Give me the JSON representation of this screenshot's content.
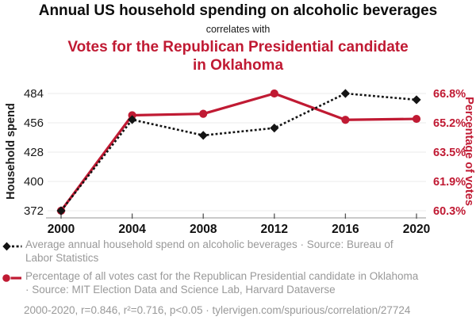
{
  "header": {
    "title": "Annual US household spending on alcoholic beverages",
    "connector": "correlates with",
    "subtitle": "Votes for the Republican Presidential candidate in Oklahoma"
  },
  "colors": {
    "accent_red": "#c01a33",
    "legend_gray": "#999999",
    "gridline": "#ebebeb",
    "axis_line": "#aaaaaa",
    "tick_mark": "#555555",
    "black_series": "#141414"
  },
  "chart_data": {
    "type": "line",
    "x": [
      2000,
      2004,
      2008,
      2012,
      2016,
      2020
    ],
    "x_tick_labels": [
      "2000",
      "2004",
      "2008",
      "2012",
      "2016",
      "2020"
    ],
    "series": [
      {
        "id": "household-spend",
        "name": "Average annual household spend on alcoholic beverages",
        "source": "Bureau of Labor Statistics",
        "axis": "left",
        "color": "#141414",
        "line_style": "dotted",
        "marker": "diamond",
        "values": [
          372,
          459,
          444,
          451,
          484,
          478
        ]
      },
      {
        "id": "republican-votes",
        "name": "Percentage of all votes cast for the Republican Presidential candidate in Oklahoma",
        "source": "MIT Election Data and Science Lab, Harvard Dataverse",
        "axis": "right",
        "color": "#c01a33",
        "line_style": "solid",
        "marker": "circle",
        "values": [
          60.31,
          65.57,
          65.65,
          66.77,
          65.32,
          65.37
        ]
      }
    ],
    "left_axis": {
      "label": "Household spend",
      "ticks": [
        "372",
        "400",
        "428",
        "456",
        "484"
      ],
      "range": [
        372,
        484
      ]
    },
    "right_axis": {
      "label": "Percentage of votes",
      "ticks": [
        "60.3%",
        "61.9%",
        "63.5%",
        "65.2%",
        "66.8%"
      ],
      "range": [
        60.31,
        66.77
      ]
    },
    "grid": true,
    "legend_position": "bottom"
  },
  "legend": {
    "items": [
      {
        "label": "Average annual household spend on alcoholic beverages · Source: Bureau of Labor Statistics"
      },
      {
        "label": "Percentage of all votes cast for the Republican Presidential candidate in Oklahoma · Source: MIT Election Data and Science Lab, Harvard Dataverse"
      }
    ]
  },
  "footer": {
    "text": "2000-2020, r=0.846, r²=0.716, p<0.05 · tylervigen.com/spurious/correlation/27724"
  }
}
